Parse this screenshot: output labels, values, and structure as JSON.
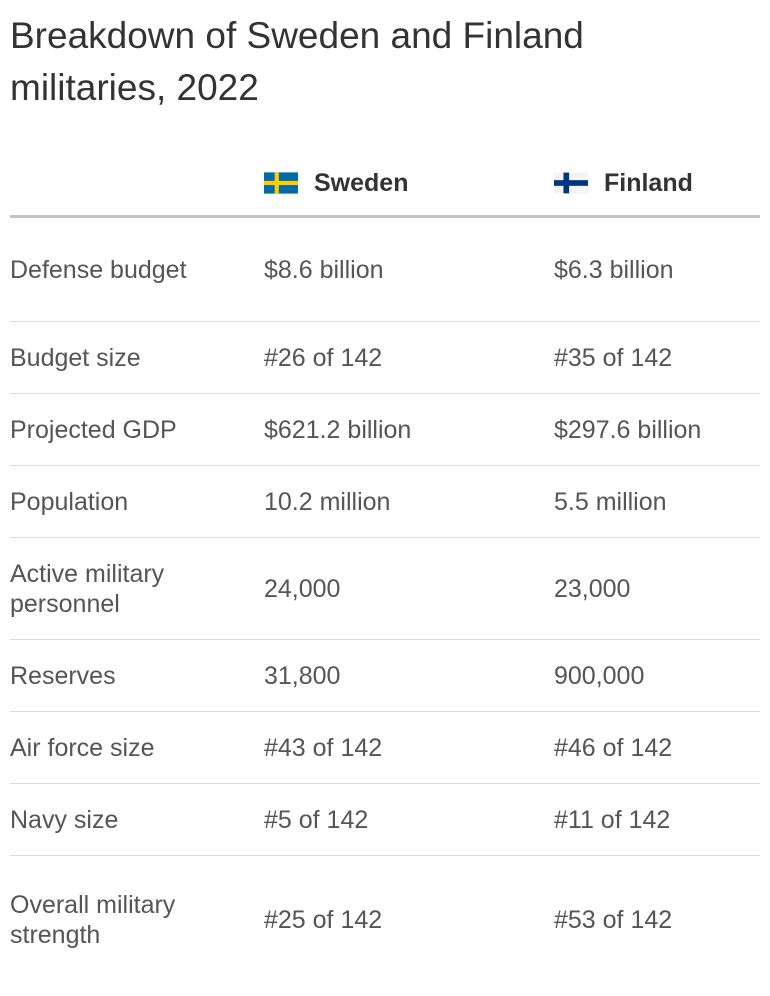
{
  "title": "Breakdown of Sweden and Finland militaries, 2022",
  "columns": {
    "sweden": {
      "label": "Sweden",
      "flag_icon": "sweden-flag-icon"
    },
    "finland": {
      "label": "Finland",
      "flag_icon": "finland-flag-icon"
    }
  },
  "rows": [
    {
      "label": "Defense budget",
      "sweden": "$8.6 billion",
      "finland": "$6.3 billion"
    },
    {
      "label": "Budget size",
      "sweden": "#26 of 142",
      "finland": "#35 of 142"
    },
    {
      "label": "Projected GDP",
      "sweden": "$621.2 billion",
      "finland": "$297.6 billion"
    },
    {
      "label": "Population",
      "sweden": "10.2 million",
      "finland": "5.5 million"
    },
    {
      "label": "Active military personnel",
      "sweden": "24,000",
      "finland": "23,000"
    },
    {
      "label": "Reserves",
      "sweden": "31,800",
      "finland": "900,000"
    },
    {
      "label": "Air force size",
      "sweden": "#43 of 142",
      "finland": "#46 of 142"
    },
    {
      "label": "Navy size",
      "sweden": "#5 of 142",
      "finland": "#11 of 142"
    },
    {
      "label": "Overall military strength",
      "sweden": "#25 of 142",
      "finland": "#53 of 142"
    }
  ],
  "colors": {
    "sweden_blue": "#006aa7",
    "sweden_yellow": "#fecc00",
    "finland_blue": "#003580",
    "text": "#333333",
    "rule": "#c4c4c4"
  }
}
